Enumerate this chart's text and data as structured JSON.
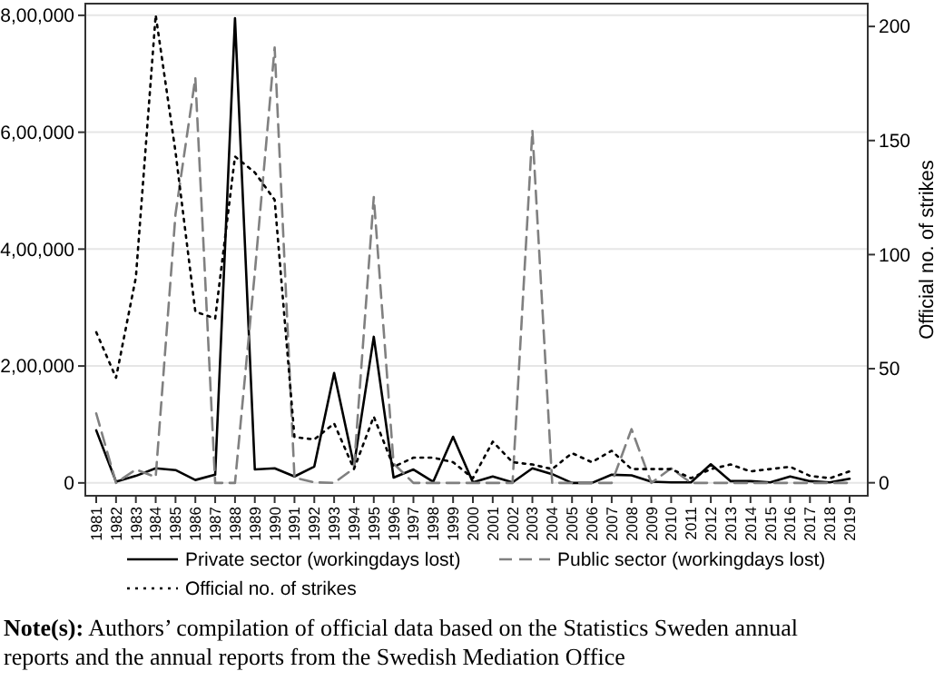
{
  "chart_data": {
    "type": "line",
    "categories": [
      "1981",
      "1982",
      "1983",
      "1984",
      "1985",
      "1986",
      "1987",
      "1988",
      "1989",
      "1990",
      "1991",
      "1992",
      "1993",
      "1994",
      "1995",
      "1996",
      "1997",
      "1998",
      "1999",
      "2000",
      "2001",
      "2002",
      "2003",
      "2004",
      "2005",
      "2006",
      "2007",
      "2008",
      "2009",
      "2010",
      "2011",
      "2012",
      "2013",
      "2014",
      "2015",
      "2016",
      "2017",
      "2018",
      "2019"
    ],
    "y2label": "Official no. of strikes",
    "ylim": [
      -22000,
      820000
    ],
    "yticks": [
      0,
      {
        "value": 200000,
        "label": "2,00,000"
      },
      {
        "value": 400000,
        "label": "4,00,000"
      },
      {
        "value": 600000,
        "label": "6,00,000"
      },
      {
        "value": 800000,
        "label": "8,00,000"
      }
    ],
    "y2lim": [
      -5.7,
      210
    ],
    "y2ticks": [
      0,
      50,
      100,
      150,
      200
    ],
    "grid": "y",
    "legend": "bottom",
    "series": [
      {
        "name": "Private sector  (workingdays lost)",
        "color": "#000000",
        "line_style": "solid",
        "values": [
          90000,
          2000,
          12000,
          25000,
          22000,
          5000,
          14000,
          795000,
          23000,
          25000,
          11000,
          28000,
          188000,
          30000,
          250000,
          9000,
          23000,
          2000,
          79000,
          1000,
          11000,
          1000,
          25000,
          15000,
          0,
          0,
          14000,
          13000,
          2000,
          1000,
          1000,
          32000,
          3000,
          3000,
          1000,
          11000,
          3000,
          1000,
          7000
        ]
      },
      {
        "name": "Public sector (workingdays lost)",
        "color": "#808080",
        "line_style": "dashed",
        "values": [
          119000,
          0,
          23000,
          10000,
          460000,
          693000,
          0,
          0,
          360000,
          745000,
          9000,
          1000,
          0,
          25000,
          489000,
          33000,
          0,
          0,
          0,
          0,
          0,
          0,
          603000,
          0,
          0,
          0,
          0,
          92000,
          0,
          25000,
          0,
          0,
          0,
          0,
          0,
          0,
          0,
          0,
          0
        ]
      },
      {
        "name": "Official no. of strikes",
        "color": "#000000",
        "line_style": "dotted",
        "axis": "y2",
        "values": [
          66,
          46,
          90,
          205,
          145,
          75,
          72,
          143,
          136,
          124,
          20,
          19,
          26,
          6,
          29,
          7,
          11,
          11,
          9,
          2,
          18,
          9,
          8,
          6,
          13,
          9,
          14,
          6,
          6,
          6,
          2,
          6,
          8,
          5,
          6,
          7,
          3,
          2,
          5
        ]
      }
    ],
    "annotations": [
      "Note(s): Authors’ compilation of official data based on the Statistics Sweden annual reports and the annual reports from the Swedish Mediation Office"
    ]
  }
}
